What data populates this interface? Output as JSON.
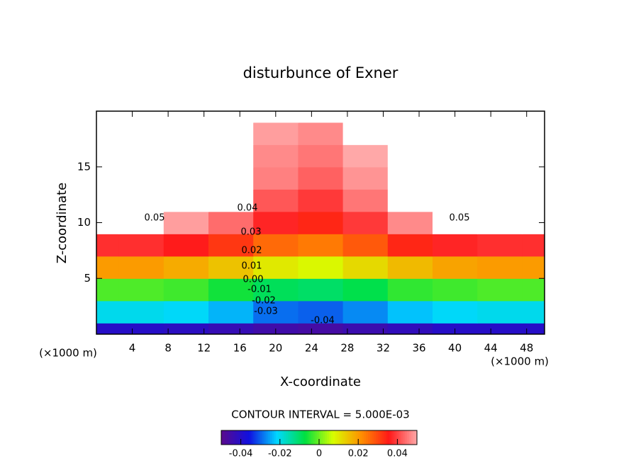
{
  "chart_data": {
    "type": "contourf",
    "title": "disturbunce of Exner",
    "xlabel": "X-coordinate",
    "ylabel": "Z-coordinate",
    "x_unit": "(×1000 m)",
    "y_unit": "(×1000 m)",
    "interval_text": "CONTOUR INTERVAL = 5.000E-03",
    "x": [
      0,
      5,
      10,
      15,
      20,
      25,
      30,
      35,
      40,
      45,
      50
    ],
    "y": [
      0,
      2,
      4,
      6,
      8,
      10,
      12,
      14,
      16,
      18,
      20
    ],
    "z": [
      [
        -0.04,
        -0.04,
        -0.041,
        -0.043,
        -0.045,
        -0.046,
        -0.044,
        -0.042,
        -0.04,
        -0.04,
        -0.04
      ],
      [
        -0.02,
        -0.02,
        -0.021,
        -0.024,
        -0.029,
        -0.03,
        -0.027,
        -0.023,
        -0.021,
        -0.02,
        -0.02
      ],
      [
        -0.002,
        -0.002,
        -0.003,
        -0.006,
        -0.009,
        -0.01,
        -0.008,
        -0.004,
        -0.003,
        -0.002,
        -0.002
      ],
      [
        0.02,
        0.02,
        0.018,
        0.015,
        0.01,
        0.008,
        0.012,
        0.016,
        0.019,
        0.02,
        0.02
      ],
      [
        0.038,
        0.038,
        0.036,
        0.032,
        0.026,
        0.024,
        0.028,
        0.034,
        0.037,
        0.038,
        0.038
      ],
      [
        0.052,
        0.052,
        0.049,
        0.044,
        0.037,
        0.034,
        0.039,
        0.047,
        0.051,
        0.052,
        0.052
      ],
      [
        0.06,
        0.059,
        0.057,
        0.051,
        0.042,
        0.039,
        0.045,
        0.054,
        0.058,
        0.06,
        0.06
      ],
      [
        0.06,
        0.06,
        0.058,
        0.053,
        0.046,
        0.043,
        0.048,
        0.055,
        0.059,
        0.06,
        0.06
      ],
      [
        0.06,
        0.06,
        0.058,
        0.053,
        0.047,
        0.045,
        0.05,
        0.056,
        0.059,
        0.06,
        0.06
      ],
      [
        0.06,
        0.06,
        0.058,
        0.054,
        0.049,
        0.047,
        0.051,
        0.056,
        0.059,
        0.06,
        0.06
      ],
      [
        0.06,
        0.06,
        0.059,
        0.056,
        0.052,
        0.051,
        0.054,
        0.057,
        0.059,
        0.06,
        0.06
      ]
    ],
    "xlim": [
      0,
      50
    ],
    "ylim": [
      0,
      20
    ],
    "xticks": [
      4,
      8,
      12,
      16,
      20,
      24,
      28,
      32,
      36,
      40,
      44,
      48
    ],
    "yticks": [
      5,
      10,
      15
    ],
    "clim": [
      -0.05,
      0.05
    ],
    "cticks": [
      -0.04,
      -0.02,
      0,
      0.02,
      0.04
    ],
    "colormap": [
      "#5a0a8c",
      "#1010e0",
      "#00d8ff",
      "#00e040",
      "#d8ff00",
      "#ff9000",
      "#ff1818",
      "#ffa8a8"
    ],
    "contour_labels": [
      "0.05",
      "0.04",
      "0.05",
      "0.03",
      "0.02",
      "0.01",
      "0.00",
      "-0.01",
      "-0.02",
      "-0.03",
      "-0.04"
    ]
  }
}
